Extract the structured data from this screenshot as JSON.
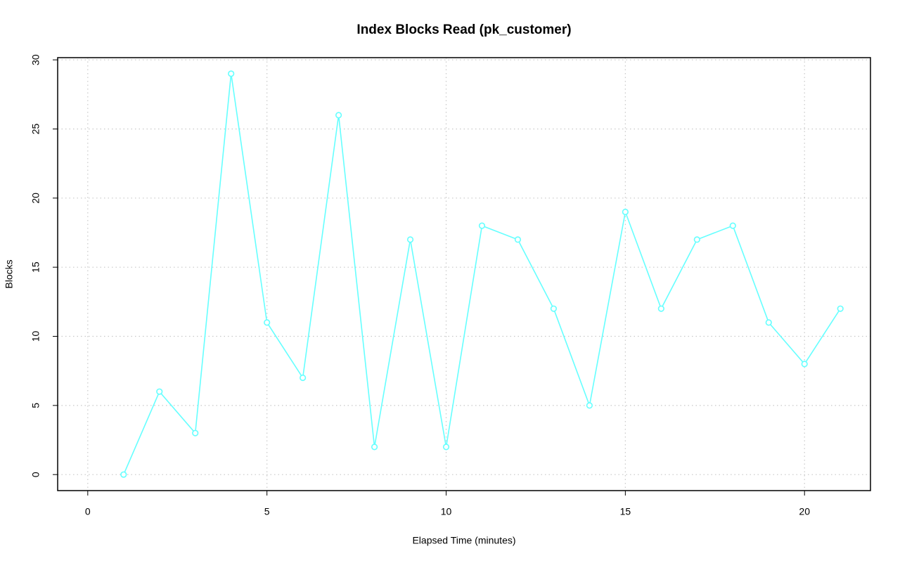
{
  "chart_data": {
    "type": "line",
    "title": "Index Blocks Read (pk_customer)",
    "x_label": "Elapsed Time (minutes)",
    "y_label": "Blocks",
    "x": [
      1,
      2,
      3,
      4,
      5,
      6,
      7,
      8,
      9,
      10,
      11,
      12,
      13,
      14,
      15,
      16,
      17,
      18,
      19,
      20,
      21
    ],
    "series": [
      {
        "name": "pk_customer",
        "color": "#66ffff",
        "values": [
          0,
          6,
          3,
          29,
          11,
          7,
          26,
          2,
          17,
          2,
          18,
          17,
          12,
          5,
          19,
          12,
          17,
          18,
          11,
          8,
          12
        ]
      }
    ],
    "xlim": [
      -0.84,
      21.84
    ],
    "ylim": [
      -1.16,
      30.16
    ],
    "xticks": [
      0,
      5,
      10,
      15,
      20
    ],
    "yticks": [
      0,
      5,
      10,
      15,
      20,
      25,
      30
    ],
    "grid": true,
    "markers": true
  }
}
